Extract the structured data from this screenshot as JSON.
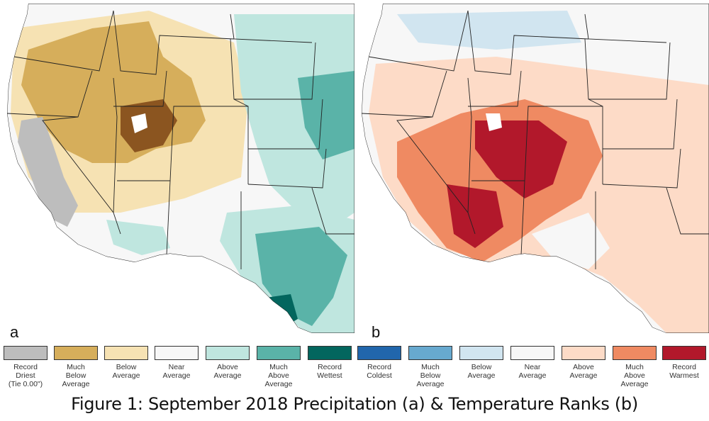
{
  "panels": {
    "a": {
      "letter": "a"
    },
    "b": {
      "letter": "b"
    }
  },
  "legend_precip": [
    {
      "label": "Record\nDriest\n(Tie 0.00\")",
      "color": "#bdbdbd"
    },
    {
      "label": "Much\nBelow\nAverage",
      "color": "#d6ae5b"
    },
    {
      "label": "Below\nAverage",
      "color": "#f6e2b3"
    },
    {
      "label": "Near\nAverage",
      "color": "#f7f7f7"
    },
    {
      "label": "Above\nAverage",
      "color": "#bfe6df"
    },
    {
      "label": "Much\nAbove\nAverage",
      "color": "#5ab3a8"
    },
    {
      "label": "Record\nWettest",
      "color": "#03665e"
    }
  ],
  "legend_temp": [
    {
      "label": "Record\nColdest",
      "color": "#2166ac"
    },
    {
      "label": "Much\nBelow\nAverage",
      "color": "#67a9cf"
    },
    {
      "label": "Below\nAverage",
      "color": "#d1e5f0"
    },
    {
      "label": "Near\nAverage",
      "color": "#f7f7f7"
    },
    {
      "label": "Above\nAverage",
      "color": "#fddbc7"
    },
    {
      "label": "Much\nAbove\nAverage",
      "color": "#ef8a62"
    },
    {
      "label": "Record\nWarmest",
      "color": "#b2182b"
    }
  ],
  "caption": "Figure 1: September 2018 Precipitation (a) & Temperature Ranks (b)"
}
